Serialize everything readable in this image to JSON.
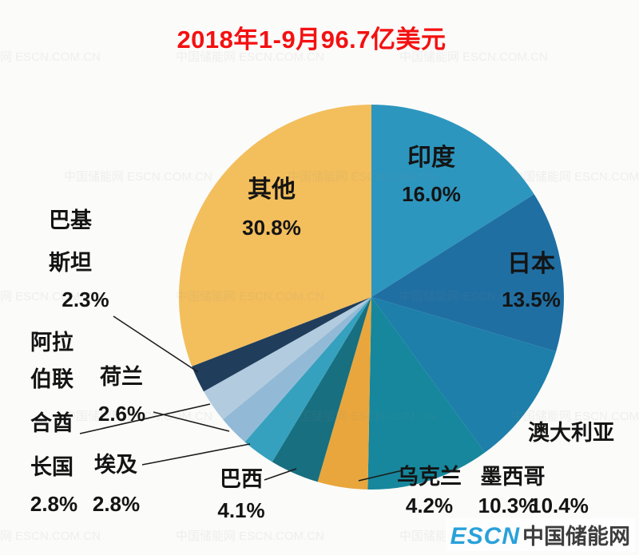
{
  "chart_data": {
    "type": "pie",
    "title": "2018年1-9月96.7亿美元",
    "legend_position": "none",
    "labels_style": "callout",
    "direction": "clockwise",
    "start_angle_deg": 0,
    "slices": [
      {
        "label": "印度",
        "value": 16.0,
        "pct_label": "16.0%",
        "color": "#2D96BE"
      },
      {
        "label": "日本",
        "value": 13.5,
        "pct_label": "13.5%",
        "color": "#1F6FA3"
      },
      {
        "label": "澳大利亚",
        "value": 10.4,
        "pct_label": "10.4%",
        "color": "#1D7FAA"
      },
      {
        "label": "墨西哥",
        "value": 10.3,
        "pct_label": "10.3%",
        "color": "#16879C"
      },
      {
        "label": "乌克兰",
        "value": 4.2,
        "pct_label": "4.2%",
        "color": "#E8A63C"
      },
      {
        "label": "巴西",
        "value": 4.1,
        "pct_label": "4.1%",
        "color": "#176F80"
      },
      {
        "label": "埃及",
        "value": 2.8,
        "pct_label": "2.8%",
        "color": "#35A1BE"
      },
      {
        "label": "荷兰",
        "value": 2.6,
        "pct_label": "2.6%",
        "color": "#92BAD6"
      },
      {
        "label": "阿拉伯联合酋长国",
        "label_lines": [
          "阿拉",
          "伯联",
          "合酋",
          "长国"
        ],
        "value": 2.8,
        "pct_label": "2.8%",
        "color": "#B2CBDE"
      },
      {
        "label": "巴基斯坦",
        "label_lines": [
          "巴基",
          "斯坦"
        ],
        "value": 2.3,
        "pct_label": "2.3%",
        "color": "#203E5C"
      },
      {
        "label": "其他",
        "value": 30.8,
        "pct_label": "30.8%",
        "color": "#F3BE5C"
      }
    ]
  },
  "branding": {
    "logo_primary": "ESCN",
    "logo_secondary": "中国储能网"
  },
  "watermark": {
    "text": "中国储能网 ESCN.COM.CN"
  }
}
